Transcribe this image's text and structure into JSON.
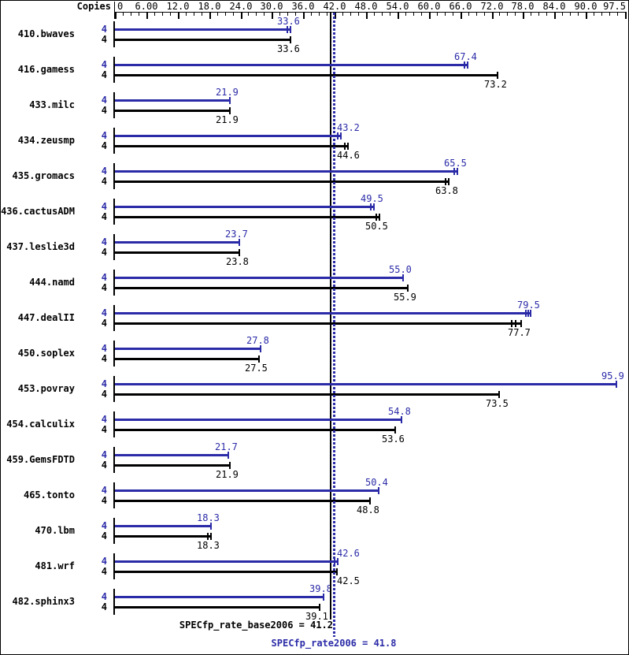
{
  "window": {
    "kind": "SPEC CFP2006 rate result chart"
  },
  "colors": {
    "peak": "#2b2ba8",
    "base": "#000000",
    "background": "#ffffff",
    "axis": "#000000"
  },
  "footer": {
    "base_result": "SPECfp_rate_base2006 = 41.2",
    "peak_result": "SPECfp_rate2006 = 41.8"
  },
  "chart_data": {
    "type": "bar",
    "orientation": "horizontal",
    "title": "",
    "xlabel": "Copies",
    "ylabel": "",
    "xlim": [
      0,
      97.5
    ],
    "grid": false,
    "minor_tick_step": 1.5,
    "x_tick_values": [
      0,
      6,
      12,
      18,
      24,
      30,
      36,
      42,
      48,
      54,
      60,
      66,
      72,
      78,
      84,
      90,
      97.5
    ],
    "x_tick_labels": [
      "0",
      "6.00",
      "12.0",
      "18.0",
      "24.0",
      "30.0",
      "36.0",
      "42.0",
      "48.0",
      "54.0",
      "60.0",
      "66.0",
      "72.0",
      "78.0",
      "84.0",
      "90.0",
      "97.5"
    ],
    "series": [
      {
        "name": "peak",
        "color": "#2b2ba8"
      },
      {
        "name": "base",
        "color": "#000000"
      }
    ],
    "benchmarks": [
      {
        "name": "410.bwaves",
        "copies": 4,
        "peak": 33.6,
        "peak_label": "33.6",
        "base": 33.6,
        "base_label": "33.6",
        "peak_end_ticks": [
          0,
          -4
        ],
        "base_end_ticks": [
          0
        ]
      },
      {
        "name": "416.gamess",
        "copies": 4,
        "peak": 67.4,
        "peak_label": "67.4",
        "base": 73.2,
        "base_label": "73.2",
        "peak_end_ticks": [
          0,
          -4
        ],
        "base_end_ticks": [
          0
        ]
      },
      {
        "name": "433.milc",
        "copies": 4,
        "peak": 21.9,
        "peak_label": "21.9",
        "base": 21.9,
        "base_label": "21.9",
        "peak_end_ticks": [
          0
        ],
        "base_end_ticks": [
          0
        ]
      },
      {
        "name": "434.zeusmp",
        "copies": 4,
        "peak": 43.2,
        "peak_label": "43.2",
        "base": 44.6,
        "base_label": "44.6",
        "peak_end_ticks": [
          0,
          -4
        ],
        "base_end_ticks": [
          0,
          -4
        ]
      },
      {
        "name": "435.gromacs",
        "copies": 4,
        "peak": 65.5,
        "peak_label": "65.5",
        "base": 63.8,
        "base_label": "63.8",
        "peak_end_ticks": [
          0,
          -4
        ],
        "base_end_ticks": [
          0,
          -4
        ]
      },
      {
        "name": "436.cactusADM",
        "copies": 4,
        "peak": 49.5,
        "peak_label": "49.5",
        "base": 50.5,
        "base_label": "50.5",
        "peak_end_ticks": [
          0,
          -4
        ],
        "base_end_ticks": [
          0,
          -4
        ]
      },
      {
        "name": "437.leslie3d",
        "copies": 4,
        "peak": 23.7,
        "peak_label": "23.7",
        "base": 23.8,
        "base_label": "23.8",
        "peak_end_ticks": [
          0
        ],
        "base_end_ticks": [
          0
        ]
      },
      {
        "name": "444.namd",
        "copies": 4,
        "peak": 55.0,
        "peak_label": "55.0",
        "base": 55.9,
        "base_label": "55.9",
        "peak_end_ticks": [
          0
        ],
        "base_end_ticks": [
          0
        ]
      },
      {
        "name": "447.dealII",
        "copies": 4,
        "peak": 79.5,
        "peak_label": "79.5",
        "base": 77.7,
        "base_label": "77.7",
        "peak_end_ticks": [
          0,
          -3,
          -6
        ],
        "base_end_ticks": [
          0,
          -7,
          -12
        ]
      },
      {
        "name": "450.soplex",
        "copies": 4,
        "peak": 27.8,
        "peak_label": "27.8",
        "base": 27.5,
        "base_label": "27.5",
        "peak_end_ticks": [
          0
        ],
        "base_end_ticks": [
          0
        ]
      },
      {
        "name": "453.povray",
        "copies": 4,
        "peak": 95.9,
        "peak_label": "95.9",
        "base": 73.5,
        "base_label": "73.5",
        "peak_end_ticks": [
          0
        ],
        "base_end_ticks": [
          0
        ]
      },
      {
        "name": "454.calculix",
        "copies": 4,
        "peak": 54.8,
        "peak_label": "54.8",
        "base": 53.6,
        "base_label": "53.6",
        "peak_end_ticks": [
          0
        ],
        "base_end_ticks": [
          0
        ]
      },
      {
        "name": "459.GemsFDTD",
        "copies": 4,
        "peak": 21.7,
        "peak_label": "21.7",
        "base": 21.9,
        "base_label": "21.9",
        "peak_end_ticks": [
          0
        ],
        "base_end_ticks": [
          0
        ]
      },
      {
        "name": "465.tonto",
        "copies": 4,
        "peak": 50.4,
        "peak_label": "50.4",
        "base": 48.8,
        "base_label": "48.8",
        "peak_end_ticks": [
          0
        ],
        "base_end_ticks": [
          0
        ]
      },
      {
        "name": "470.lbm",
        "copies": 4,
        "peak": 18.3,
        "peak_label": "18.3",
        "base": 18.3,
        "base_label": "18.3",
        "peak_end_ticks": [
          0
        ],
        "base_end_ticks": [
          0,
          -4
        ]
      },
      {
        "name": "481.wrf",
        "copies": 4,
        "peak": 42.6,
        "peak_label": "42.6",
        "base": 42.5,
        "base_label": "42.5",
        "peak_end_ticks": [
          0,
          -4
        ],
        "base_end_ticks": [
          0
        ]
      },
      {
        "name": "482.sphinx3",
        "copies": 4,
        "peak": 39.8,
        "peak_label": "39.8",
        "base": 39.1,
        "base_label": "39.1",
        "peak_end_ticks": [
          0
        ],
        "base_end_ticks": [
          0
        ]
      }
    ],
    "reference_lines": [
      {
        "name": "base_mean",
        "value": 41.2,
        "style": "solid",
        "color": "#000000",
        "label": "SPECfp_rate_base2006 = 41.2"
      },
      {
        "name": "peak_mean",
        "value": 41.8,
        "style": "dotted",
        "color": "#2b2ba8",
        "label": "SPECfp_rate2006 = 41.8"
      }
    ],
    "legend_position": "none"
  }
}
